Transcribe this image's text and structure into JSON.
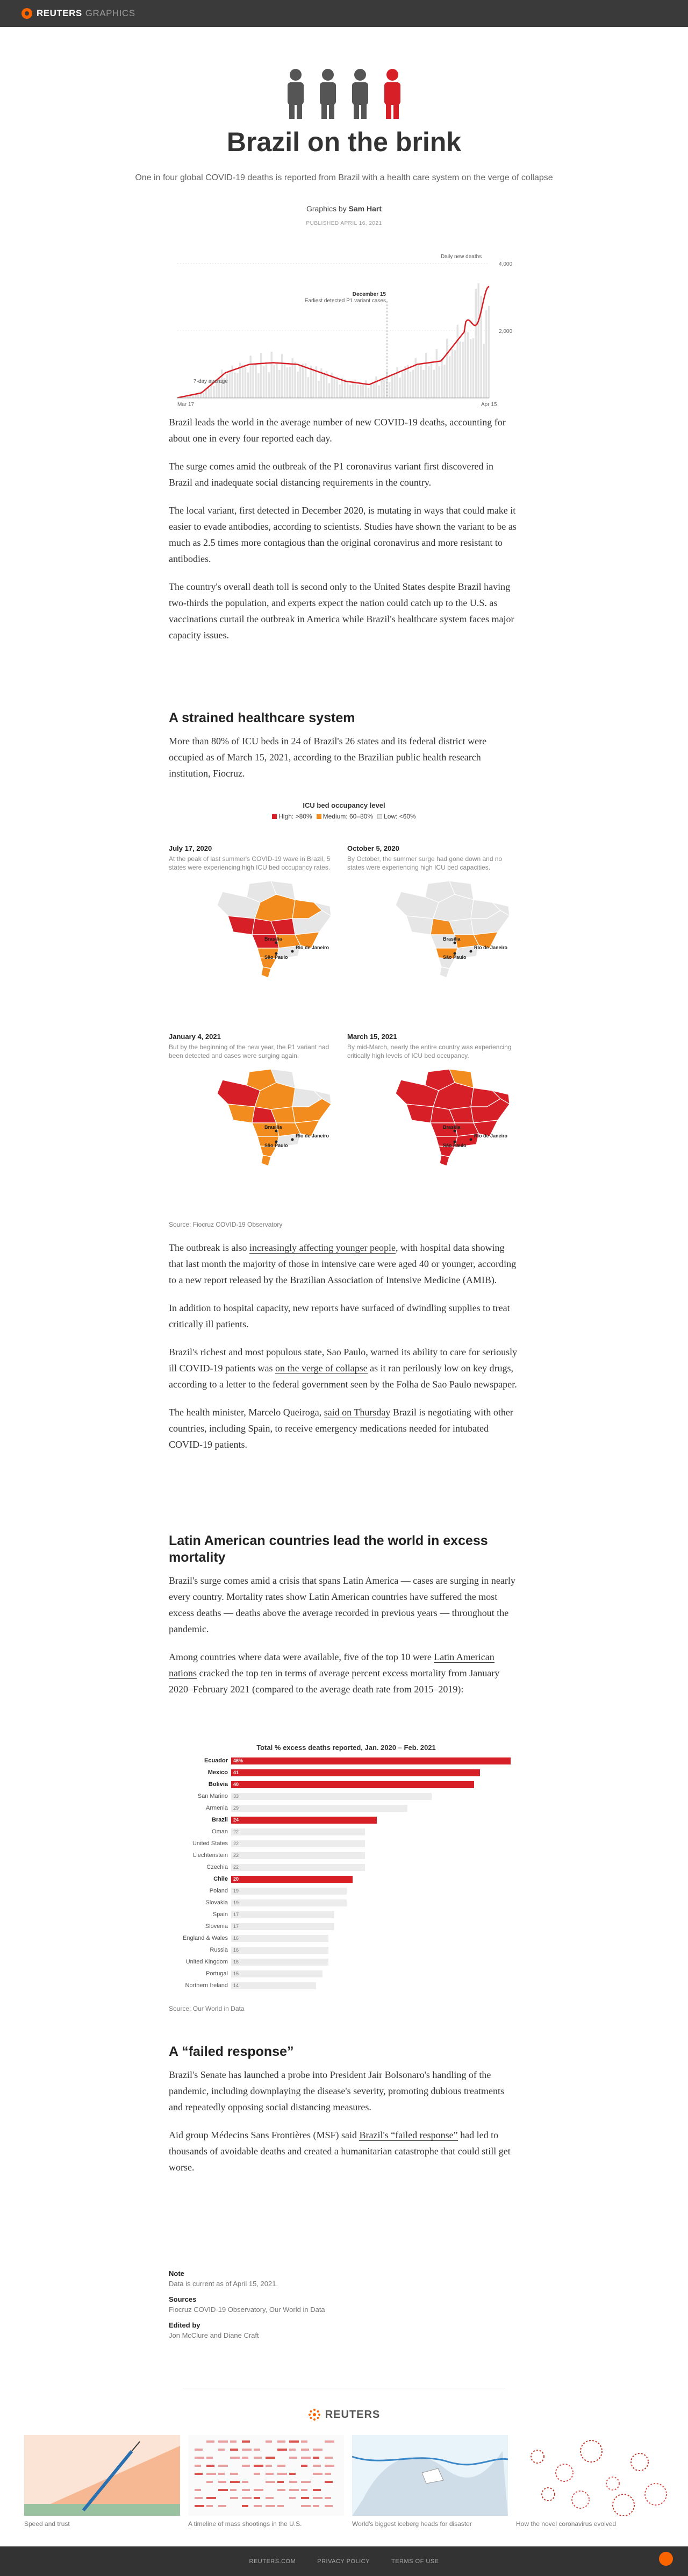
{
  "topbar": {
    "brand": "REUTERS",
    "section": "GRAPHICS"
  },
  "hero": {
    "title": "Brazil on the brink",
    "deck": "One in four global COVID-19 deaths is reported from Brazil with a health care system on the verge of collapse",
    "byline_prefix": "Graphics by",
    "byline_author": "Sam Hart",
    "published": "PUBLISHED APRIL 16, 2021"
  },
  "intro_chart": {
    "annotation_daily": "Daily new deaths",
    "annotation_dec_date": "December 15",
    "annotation_dec_text": "Earliest detected P1 variant cases",
    "annotation_avg": "7-day average",
    "y_ticks": [
      "4,000",
      "2,000"
    ],
    "x_start": "Mar 17",
    "x_end": "Apr 15"
  },
  "chart_data": {
    "type": "area",
    "x": [
      "2020-03-17",
      "2020-04-15",
      "2020-05-15",
      "2020-06-15",
      "2020-07-15",
      "2020-08-15",
      "2020-09-15",
      "2020-10-15",
      "2020-11-15",
      "2020-12-15",
      "2021-01-15",
      "2021-02-15",
      "2021-03-15",
      "2021-04-15"
    ],
    "series": [
      {
        "name": "7-day average",
        "values": [
          5,
          150,
          750,
          1000,
          1050,
          1000,
          750,
          500,
          400,
          700,
          1000,
          1100,
          2000,
          3000
        ]
      }
    ],
    "ylim": [
      0,
      4500
    ]
  },
  "intro_paras": [
    "Brazil leads the world in the average number of new COVID-19 deaths, accounting for about one in every four reported each day.",
    "The surge comes amid the outbreak of the P1 coronavirus variant first discovered in Brazil and inadequate social distancing requirements in the country.",
    "The local variant, first detected in December 2020, is mutating in ways that could make it easier to evade antibodies, according to scientists. Studies have shown the variant to be as much as 2.5 times more contagious than the original coronavirus and more resistant to antibodies.",
    "The country's overall death toll is second only to the United States despite Brazil having two-thirds the population, and experts expect the nation could catch up to the U.S. as vaccinations curtail the outbreak in America while Brazil's healthcare system faces major capacity issues."
  ],
  "section1": {
    "heading": "A strained healthcare system",
    "para": "More than 80% of ICU beds in 24 of Brazil's 26 states and its federal district were occupied as of March 15, 2021, according to the Brazilian public health research institution, Fiocruz.",
    "legend_title": "ICU bed occupancy level",
    "legend": [
      "High: >80%",
      "Medium: 60–80%",
      "Low: <60%"
    ],
    "colors": {
      "high": "#d61f26",
      "medium": "#f28c1e",
      "low": "#e6e6e6"
    },
    "maps": [
      {
        "date": "July 17, 2020",
        "desc": "At the peak of last summer's COVID-19 wave in Brazil, 5 states were experiencing high ICU bed occupancy rates."
      },
      {
        "date": "October 5, 2020",
        "desc": "By October, the summer surge had gone down and no states were experiencing high ICU bed capacities."
      },
      {
        "date": "January 4, 2021",
        "desc": "But by the beginning of the new year, the P1 variant had been detected and cases were surging again."
      },
      {
        "date": "March 15, 2021",
        "desc": "By mid-March, nearly the entire country was experiencing critically high levels of ICU bed occupancy."
      }
    ],
    "city_labels": [
      "Brasília",
      "São Paulo",
      "Rio de Janeiro"
    ],
    "source": "Source: Fiocruz COVID-19 Observatory"
  },
  "section1_paras": {
    "p1_link": "increasingly affecting younger people",
    "p1_pre": "The outbreak is also ",
    "p1_post": ", with hospital data showing that last month the majority of those in intensive care were aged 40 or younger, according to a new report released by the Brazilian Association of Intensive Medicine (AMIB).",
    "p2": "In addition to hospital capacity, new reports have surfaced of dwindling supplies to treat critically ill patients.",
    "p3_pre": "Brazil's richest and most populous state, Sao Paulo, warned its ability to care for seriously ill COVID-19 patients was ",
    "p3_link": "on the verge of collapse",
    "p3_post": " as it ran perilously low on key drugs, according to a letter to the federal government seen by the Folha de Sao Paulo newspaper.",
    "p4_pre": "The health minister, Marcelo Queiroga, ",
    "p4_link": "said on Thursday",
    "p4_post": " Brazil is negotiating with other countries, including Spain, to receive emergency medications needed for intubated COVID-19 patients."
  },
  "section2": {
    "heading": "Latin American countries lead the world in excess mortality",
    "p1": "Brazil's surge comes amid a crisis that spans Latin America — cases are surging in nearly every country. Mortality rates show Latin American countries have suffered the most excess deaths — deaths above the average recorded in previous years — throughout the pandemic.",
    "p2_pre": "Among countries where data were available, five of the top 10 were ",
    "p2_link": "Latin American nations",
    "p2_post": " cracked the top ten in terms of average percent excess mortality from January 2020–February 2021 (compared to the average death rate from 2015–2019):",
    "chart_title": "Total % excess deaths reported, Jan. 2020 – Feb. 2021",
    "source": "Source: Our World in Data"
  },
  "excess_chart": {
    "type": "bar",
    "categories": [
      "Ecuador",
      "Mexico",
      "Bolivia",
      "San Marino",
      "Armenia",
      "Brazil",
      "Oman",
      "United States",
      "Liechtenstein",
      "Czechia",
      "Chile",
      "Poland",
      "Slovakia",
      "Spain",
      "Slovenia",
      "England & Wales",
      "Russia",
      "United Kingdom",
      "Portugal",
      "Northern Ireland"
    ],
    "values": [
      46,
      41,
      40,
      33,
      29,
      24,
      22,
      22,
      22,
      22,
      20,
      19,
      19,
      17,
      17,
      16,
      16,
      16,
      15,
      14
    ],
    "labels": [
      "46%",
      "41",
      "40",
      "33",
      "29",
      "24",
      "22",
      "22",
      "22",
      "22",
      "20",
      "19",
      "19",
      "17",
      "17",
      "16",
      "16",
      "16",
      "15",
      "14"
    ],
    "highlight": [
      "Ecuador",
      "Mexico",
      "Bolivia",
      "Brazil",
      "Chile"
    ],
    "xlim": [
      0,
      46
    ]
  },
  "section3": {
    "heading": "A “failed response”",
    "p1": "Brazil's Senate has launched a probe into President Jair Bolsonaro's handling of the pandemic, including downplaying the disease's severity, promoting dubious treatments and repeatedly opposing social distancing measures.",
    "p2_pre": "Aid group Médecins Sans Frontières (MSF) said ",
    "p2_link": "Brazil's “failed response”",
    "p2_post": " had led to thousands of avoidable deaths and created a humanitarian catastrophe that could still get worse."
  },
  "notes": [
    {
      "label": "Note",
      "text": "Data is current as of April 15, 2021."
    },
    {
      "label": "Sources",
      "text": "Fiocruz COVID-19 Observatory, Our World in Data"
    },
    {
      "label": "Edited by",
      "text": "Jon McClure and Diane Craft"
    }
  ],
  "footer": {
    "logo": "REUTERS",
    "cards": [
      {
        "caption": "Speed and trust"
      },
      {
        "caption": "A timeline of mass shootings in the U.S."
      },
      {
        "caption": "World's biggest iceberg heads for disaster"
      },
      {
        "caption": "How the novel coronavirus evolved"
      }
    ],
    "links": [
      "REUTERS.COM",
      "PRIVACY POLICY",
      "TERMS OF USE"
    ]
  }
}
